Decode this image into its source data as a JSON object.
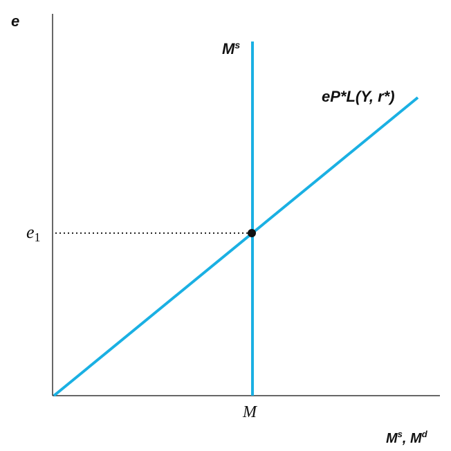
{
  "labels": {
    "y_axis": "e",
    "x_axis_base_1": "M",
    "x_axis_sup_1": "s",
    "x_axis_sep": ", ",
    "x_axis_base_2": "M",
    "x_axis_sup_2": "d",
    "supply_base": "M",
    "supply_sup": "s",
    "demand": "eP*L(Y, r*)",
    "e1_base": "e",
    "e1_sub": "1",
    "m_tick": "M"
  },
  "colors": {
    "curve": "#1ab0e3",
    "axis": "#333333",
    "point": "#111111",
    "guide": "#222222"
  }
}
